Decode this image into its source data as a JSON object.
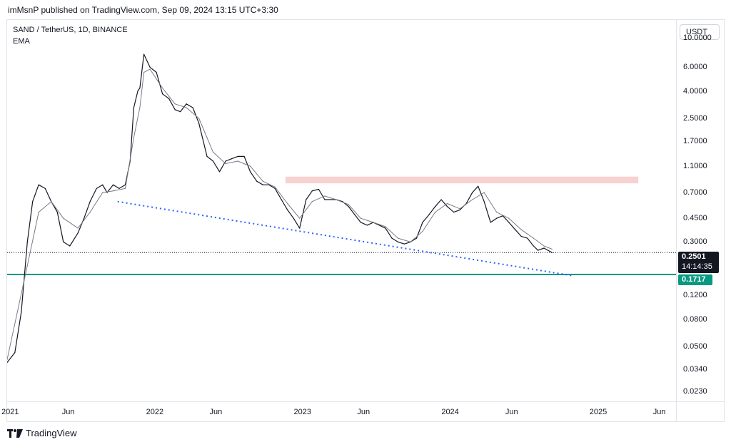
{
  "header": {
    "publisher_text": "imMsnP published on TradingView.com, Sep 09, 2024 13:15 UTC+3:30"
  },
  "legend": {
    "symbol": "SAND / TetherUS, 1D, BINANCE",
    "indicator": "EMA"
  },
  "currency_button": "USDT",
  "price_badge": {
    "price": "0.2501",
    "countdown": "14:14:35"
  },
  "level_badge": "0.1717",
  "footer": {
    "brand": "TradingView"
  },
  "colors": {
    "candles": "#131722",
    "ema": "#787b86",
    "resistance_zone": "#f7c9c9",
    "support_line": "#089981",
    "trendline": "#2962ff",
    "price_line": "#131722"
  },
  "chart_data": {
    "type": "line",
    "scale": "log",
    "title": "SAND / TetherUS, 1D, BINANCE",
    "ylim": [
      0.0195,
      13.5
    ],
    "y_ticks": [
      "10.0000",
      "6.0000",
      "4.0000",
      "2.5000",
      "1.7000",
      "1.1000",
      "0.7000",
      "0.4500",
      "0.3000",
      "0.1200",
      "0.0800",
      "0.0500",
      "0.0340",
      "0.0230"
    ],
    "y_tick_values": [
      10,
      6,
      4,
      2.5,
      1.7,
      1.1,
      0.7,
      0.45,
      0.3,
      0.12,
      0.08,
      0.05,
      0.034,
      0.023
    ],
    "x_ticks": [
      "2021",
      "Jun",
      "2022",
      "Jun",
      "2023",
      "Jun",
      "2024",
      "Jun",
      "2025",
      "Jun"
    ],
    "x_tick_dates": [
      "2021-01-01",
      "2021-06-01",
      "2022-01-01",
      "2022-06-01",
      "2023-01-01",
      "2023-06-01",
      "2024-01-01",
      "2024-06-01",
      "2025-01-01",
      "2025-06-01"
    ],
    "series": [
      {
        "name": "SAND / TetherUS",
        "x": [
          "2021-01-01",
          "2021-01-20",
          "2021-02-05",
          "2021-02-20",
          "2021-03-05",
          "2021-03-20",
          "2021-04-05",
          "2021-04-20",
          "2021-05-05",
          "2021-05-20",
          "2021-06-05",
          "2021-06-25",
          "2021-07-10",
          "2021-07-25",
          "2021-08-10",
          "2021-08-25",
          "2021-09-05",
          "2021-09-20",
          "2021-10-05",
          "2021-10-20",
          "2021-11-01",
          "2021-11-10",
          "2021-11-20",
          "2021-11-25",
          "2021-12-05",
          "2021-12-20",
          "2022-01-05",
          "2022-01-20",
          "2022-02-05",
          "2022-02-20",
          "2022-03-05",
          "2022-03-20",
          "2022-04-05",
          "2022-04-20",
          "2022-05-10",
          "2022-05-25",
          "2022-06-10",
          "2022-06-25",
          "2022-07-10",
          "2022-07-25",
          "2022-08-10",
          "2022-08-25",
          "2022-09-10",
          "2022-09-25",
          "2022-10-10",
          "2022-10-25",
          "2022-11-10",
          "2022-11-25",
          "2022-12-10",
          "2022-12-25",
          "2023-01-10",
          "2023-01-25",
          "2023-02-10",
          "2023-02-25",
          "2023-03-10",
          "2023-03-25",
          "2023-04-10",
          "2023-04-25",
          "2023-05-10",
          "2023-05-25",
          "2023-06-10",
          "2023-06-25",
          "2023-07-10",
          "2023-07-25",
          "2023-08-10",
          "2023-08-25",
          "2023-09-10",
          "2023-09-25",
          "2023-10-10",
          "2023-10-25",
          "2023-11-10",
          "2023-11-25",
          "2023-12-10",
          "2023-12-25",
          "2024-01-10",
          "2024-01-25",
          "2024-02-10",
          "2024-02-25",
          "2024-03-10",
          "2024-03-25",
          "2024-04-10",
          "2024-04-25",
          "2024-05-10",
          "2024-05-25",
          "2024-06-10",
          "2024-06-25",
          "2024-07-10",
          "2024-07-25",
          "2024-08-05",
          "2024-08-20",
          "2024-09-09"
        ],
        "values": [
          0.038,
          0.045,
          0.09,
          0.3,
          0.6,
          0.8,
          0.75,
          0.6,
          0.5,
          0.3,
          0.28,
          0.35,
          0.45,
          0.6,
          0.75,
          0.8,
          0.7,
          0.8,
          0.75,
          0.8,
          1.2,
          3.0,
          4.0,
          4.2,
          7.5,
          6.0,
          5.5,
          3.8,
          3.5,
          2.9,
          2.8,
          3.2,
          3.0,
          2.3,
          1.3,
          1.2,
          1.0,
          1.2,
          1.25,
          1.3,
          1.3,
          1.0,
          0.85,
          0.8,
          0.8,
          0.75,
          0.62,
          0.52,
          0.45,
          0.38,
          0.62,
          0.72,
          0.74,
          0.62,
          0.62,
          0.62,
          0.6,
          0.55,
          0.48,
          0.42,
          0.4,
          0.42,
          0.4,
          0.38,
          0.32,
          0.3,
          0.29,
          0.3,
          0.32,
          0.42,
          0.48,
          0.55,
          0.62,
          0.55,
          0.5,
          0.52,
          0.58,
          0.7,
          0.78,
          0.6,
          0.42,
          0.45,
          0.47,
          0.42,
          0.37,
          0.33,
          0.32,
          0.28,
          0.26,
          0.27,
          0.2501
        ]
      },
      {
        "name": "EMA",
        "x": [
          "2021-01-01",
          "2021-02-20",
          "2021-03-20",
          "2021-04-20",
          "2021-05-20",
          "2021-06-25",
          "2021-07-25",
          "2021-08-25",
          "2021-09-20",
          "2021-10-20",
          "2021-11-10",
          "2021-11-25",
          "2021-12-05",
          "2021-12-20",
          "2022-01-20",
          "2022-02-20",
          "2022-03-20",
          "2022-04-20",
          "2022-05-25",
          "2022-06-25",
          "2022-07-25",
          "2022-08-25",
          "2022-09-25",
          "2022-10-25",
          "2022-11-25",
          "2022-12-25",
          "2023-01-25",
          "2023-02-25",
          "2023-03-25",
          "2023-04-25",
          "2023-05-25",
          "2023-06-25",
          "2023-07-25",
          "2023-08-25",
          "2023-09-25",
          "2023-10-25",
          "2023-11-25",
          "2023-12-25",
          "2024-01-25",
          "2024-02-25",
          "2024-03-25",
          "2024-04-25",
          "2024-05-25",
          "2024-06-25",
          "2024-07-25",
          "2024-08-20",
          "2024-09-09"
        ],
        "values": [
          0.04,
          0.2,
          0.5,
          0.6,
          0.45,
          0.38,
          0.5,
          0.7,
          0.72,
          0.75,
          1.8,
          3.0,
          5.5,
          5.8,
          4.2,
          3.2,
          3.0,
          2.5,
          1.4,
          1.15,
          1.2,
          1.1,
          0.85,
          0.77,
          0.58,
          0.45,
          0.6,
          0.66,
          0.62,
          0.57,
          0.45,
          0.42,
          0.39,
          0.32,
          0.3,
          0.36,
          0.5,
          0.58,
          0.53,
          0.62,
          0.7,
          0.5,
          0.45,
          0.37,
          0.32,
          0.28,
          0.265
        ]
      }
    ],
    "annotations": {
      "current_price": 0.2501,
      "support_level": 0.1717,
      "resistance_zone": {
        "from": "2022-11-20",
        "to": "2025-04-10",
        "low": 0.82,
        "high": 0.92
      },
      "trendline": {
        "start": {
          "x": "2021-10-01",
          "y": 0.6
        },
        "end": {
          "x": "2024-10-31",
          "y": 0.168
        },
        "style": "dotted"
      }
    }
  }
}
